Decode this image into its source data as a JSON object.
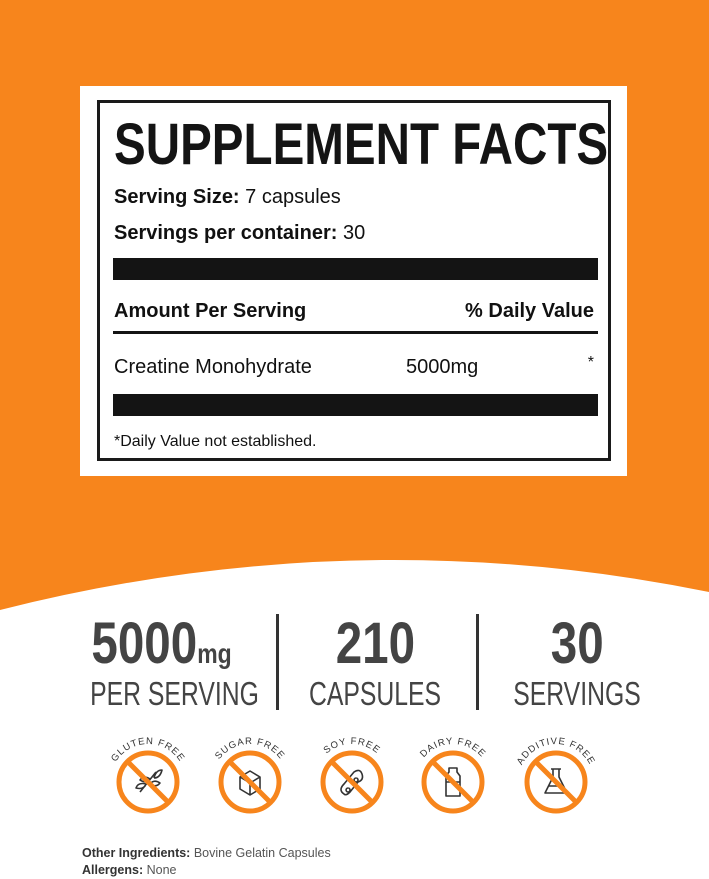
{
  "colors": {
    "brand": "#f7851c",
    "text": "#444444"
  },
  "facts": {
    "title": "SUPPLEMENT FACTS",
    "serving_size_label": "Serving Size:",
    "serving_size_value": "7 capsules",
    "servings_label": "Servings per container:",
    "servings_value": "30",
    "amount_header": "Amount Per Serving",
    "dv_header": "% Daily Value",
    "ingredient": "Creatine Monohydrate",
    "amount": "5000mg",
    "dv": "*",
    "footnote": "*Daily Value not established."
  },
  "stats": [
    {
      "value": "5000",
      "unit": "mg",
      "label": "PER SERVING"
    },
    {
      "value": "210",
      "label": "CAPSULES"
    },
    {
      "value": "30",
      "label": "SERVINGS"
    }
  ],
  "badges": [
    {
      "label": "GLUTEN FREE",
      "icon": "wheat-icon"
    },
    {
      "label": "SUGAR FREE",
      "icon": "sugar-cube-icon"
    },
    {
      "label": "SOY FREE",
      "icon": "soybean-icon"
    },
    {
      "label": "DAIRY FREE",
      "icon": "milk-bottle-icon"
    },
    {
      "label": "ADDITIVE FREE",
      "icon": "flask-icon"
    }
  ],
  "footer": {
    "other_label": "Other Ingredients:",
    "other_value": "Bovine Gelatin Capsules",
    "allergens_label": "Allergens:",
    "allergens_value": "None"
  }
}
